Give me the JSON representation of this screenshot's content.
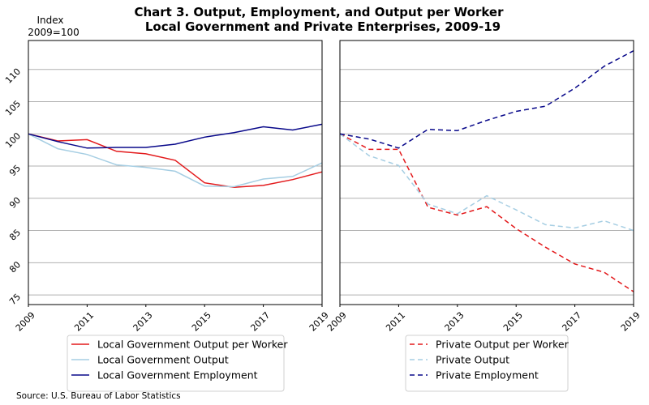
{
  "title_line1": "Chart 3. Output, Employment, and Output per Worker",
  "title_line2": "Local Government and Private Enterprises, 2009-19",
  "y_axis_title_line1": "Index",
  "y_axis_title_line2": "2009=100",
  "source": "Source: U.S. Bureau of Labor Statistics",
  "chart_data": [
    {
      "type": "line",
      "panel": "left",
      "x": [
        2009,
        2010,
        2011,
        2012,
        2013,
        2014,
        2015,
        2016,
        2017,
        2018,
        2019
      ],
      "x_ticks": [
        "2009",
        "2011",
        "2013",
        "2015",
        "2017",
        "2019"
      ],
      "xlim": [
        2009,
        2019
      ],
      "ylim": [
        73.5,
        114.5
      ],
      "y_ticks": [
        "75",
        "80",
        "85",
        "90",
        "95",
        "100",
        "105",
        "110"
      ],
      "grid": "horizontal",
      "series": [
        {
          "name": "Local Government Output per Worker",
          "color": "#e31a1c",
          "dash": "solid",
          "values": [
            100.0,
            98.9,
            99.1,
            97.3,
            96.9,
            95.9,
            92.4,
            91.7,
            92.0,
            92.9,
            94.1
          ]
        },
        {
          "name": "Local Government Output",
          "color": "#a6cee3",
          "dash": "solid",
          "values": [
            100.0,
            97.7,
            96.8,
            95.2,
            94.8,
            94.2,
            91.9,
            91.8,
            93.0,
            93.4,
            95.5
          ]
        },
        {
          "name": "Local Government Employment",
          "color": "#08088a",
          "dash": "solid",
          "values": [
            100.0,
            98.8,
            97.8,
            97.9,
            97.9,
            98.4,
            99.5,
            100.2,
            101.1,
            100.6,
            101.5
          ]
        }
      ]
    },
    {
      "type": "line",
      "panel": "right",
      "x": [
        2009,
        2010,
        2011,
        2012,
        2013,
        2014,
        2015,
        2016,
        2017,
        2018,
        2019
      ],
      "x_ticks": [
        "2009",
        "2011",
        "2013",
        "2015",
        "2017",
        "2019"
      ],
      "xlim": [
        2009,
        2019
      ],
      "ylim": [
        73.5,
        114.5
      ],
      "grid": "horizontal",
      "series": [
        {
          "name": "Private Output per Worker",
          "color": "#e31a1c",
          "dash": "dashed",
          "values": [
            100.0,
            97.6,
            97.6,
            88.6,
            87.4,
            88.7,
            85.3,
            82.4,
            79.8,
            78.5,
            75.5
          ]
        },
        {
          "name": "Private Output",
          "color": "#a6cee3",
          "dash": "dashed",
          "values": [
            100.0,
            96.6,
            95.1,
            89.1,
            87.6,
            90.4,
            88.2,
            85.9,
            85.4,
            86.5,
            85.0
          ]
        },
        {
          "name": "Private Employment",
          "color": "#08088a",
          "dash": "dashed",
          "values": [
            100.0,
            99.2,
            97.8,
            100.7,
            100.5,
            102.1,
            103.5,
            104.3,
            107.1,
            110.5,
            112.9
          ]
        }
      ]
    }
  ]
}
